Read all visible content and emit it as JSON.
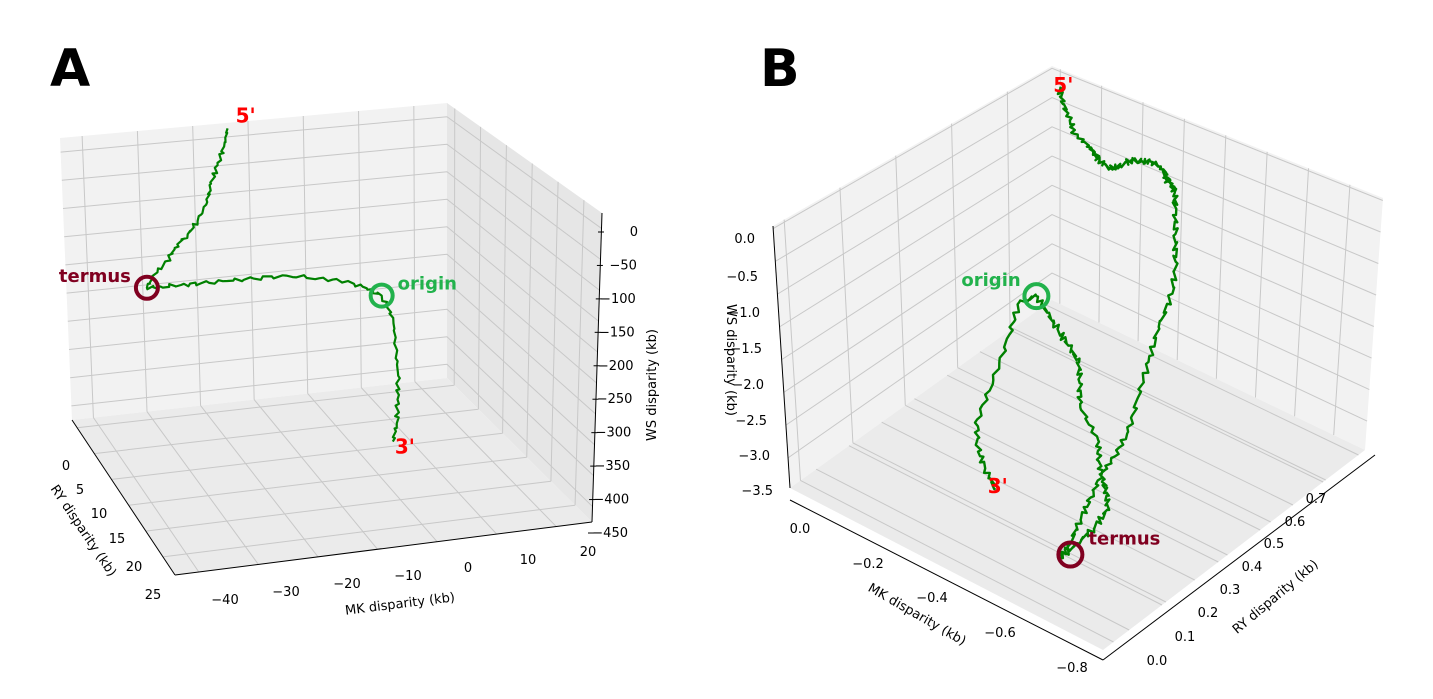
{
  "chart_data": [
    {
      "type": "line",
      "panel": "A",
      "series": [
        {
          "color": "#008000",
          "x": [
            -16.0,
            -17.5,
            -19.5,
            -21.5,
            -23.0,
            -25.5,
            -28.0,
            -31.0,
            -33.0,
            -36.0,
            -38.0,
            -36.0,
            -33.0,
            -30.0,
            -26.0,
            -22.0,
            -17.0,
            -12.0,
            -8.0,
            -5.0,
            -3.0,
            -2.0,
            -2.5,
            -3.0,
            -4.0,
            -5.0,
            -6.5
          ],
          "y": [
            0,
            1,
            2,
            3,
            4,
            5,
            6,
            7,
            8,
            9,
            10,
            10.5,
            11,
            11.5,
            12,
            12.5,
            13,
            13.5,
            14,
            14.5,
            15,
            16,
            17,
            18,
            19,
            20,
            21
          ],
          "z": [
            0,
            -20,
            -40,
            -60,
            -80,
            -100,
            -110,
            -120,
            -130,
            -140,
            -150,
            -145,
            -140,
            -135,
            -130,
            -125,
            -120,
            -125,
            -130,
            -140,
            -150,
            -180,
            -220,
            -260,
            -290,
            -320,
            -340
          ]
        }
      ],
      "annotations": [
        {
          "text": "5'",
          "color": "#ff0000",
          "at": [
            -16.0,
            0,
            0
          ]
        },
        {
          "text": "termus",
          "color": "#800020",
          "at": [
            -38.0,
            10,
            -150
          ]
        },
        {
          "text": "origin",
          "color": "#22b24c",
          "at": [
            -3.0,
            15,
            -150
          ]
        },
        {
          "text": "3'",
          "color": "#ff0000",
          "at": [
            -6.5,
            21,
            -340
          ]
        }
      ],
      "markers": [
        {
          "name": "termus",
          "color": "#800020",
          "at": [
            -38.0,
            10,
            -150
          ]
        },
        {
          "name": "origin",
          "color": "#22b24c",
          "at": [
            -3.0,
            15,
            -150
          ]
        }
      ],
      "xlabel": "MK disparity (kb)",
      "ylabel": "RY disparity (kb)",
      "zlabel": "WS disparity (kb)",
      "xticks": [
        "−40",
        "−30",
        "−20",
        "−10",
        "0",
        "10",
        "20"
      ],
      "yticks": [
        "0",
        "5",
        "10",
        "15",
        "20",
        "25"
      ],
      "zticks": [
        "0",
        "−50",
        "−100",
        "−150",
        "−200",
        "−250",
        "−300",
        "−350",
        "−400",
        "−450"
      ],
      "grid": true
    },
    {
      "type": "line",
      "panel": "B",
      "series": [
        {
          "color": "#008000",
          "x": [
            0.0,
            -0.03,
            -0.08,
            -0.12,
            -0.18,
            -0.22,
            -0.25,
            -0.3,
            -0.35,
            -0.4,
            -0.45,
            -0.5,
            -0.55,
            -0.6,
            -0.62,
            -0.65,
            -0.68,
            -0.7,
            -0.72,
            -0.74,
            -0.75,
            -0.73,
            -0.72,
            -0.71,
            -0.7,
            -0.69,
            -0.68,
            -0.67,
            -0.66,
            -0.65,
            -0.64,
            -0.65,
            -0.66,
            -0.64,
            -0.6,
            -0.55,
            -0.5,
            -0.45,
            -0.35,
            -0.3,
            -0.25,
            -0.2,
            -0.15,
            -0.1,
            -0.05,
            -0.02,
            -0.05,
            -0.1,
            -0.15,
            -0.2,
            -0.25,
            -0.3
          ],
          "y": [
            0.0,
            0.02,
            0.05,
            0.08,
            0.1,
            0.12,
            0.14,
            0.16,
            0.18,
            0.2,
            0.22,
            0.24,
            0.26,
            0.3,
            0.32,
            0.34,
            0.36,
            0.38,
            0.4,
            0.42,
            0.44,
            0.46,
            0.48,
            0.5,
            0.52,
            0.55,
            0.58,
            0.6,
            0.62,
            0.64,
            0.66,
            0.62,
            0.58,
            0.52,
            0.48,
            0.44,
            0.4,
            0.35,
            0.3,
            0.25,
            0.2,
            0.18,
            0.16,
            0.14,
            0.12,
            0.14,
            0.2,
            0.3,
            0.4,
            0.45,
            0.48,
            0.5
          ],
          "z": [
            0.0,
            -0.1,
            -0.1,
            -0.1,
            -0.05,
            0.0,
            0.05,
            0.15,
            0.4,
            0.7,
            0.9,
            1.1,
            1.2,
            1.3,
            1.5,
            1.55,
            1.6,
            1.5,
            1.2,
            0.9,
            0.5,
            0.0,
            -0.5,
            -1.0,
            -1.5,
            -1.8,
            -2.0,
            -2.3,
            -2.6,
            -2.9,
            -3.1,
            -3.0,
            -2.9,
            -2.9,
            -2.9,
            -3.0,
            -3.0,
            -3.0,
            -2.95,
            -2.9,
            -2.9,
            -2.85,
            -2.8,
            -2.75,
            -2.7,
            -2.8,
            -3.0,
            -3.2,
            -3.3,
            -3.4,
            -3.5,
            -3.6
          ]
        }
      ],
      "annotations": [
        {
          "text": "5'",
          "color": "#ff0000",
          "at": [
            0.0,
            0.0,
            0.0
          ]
        },
        {
          "text": "origin",
          "color": "#22b24c",
          "at": [
            -0.05,
            0.12,
            -2.7
          ]
        },
        {
          "text": "termus",
          "color": "#800020",
          "at": [
            -0.65,
            0.64,
            -3.1
          ]
        },
        {
          "text": "3'",
          "color": "#ff0000",
          "at": [
            -0.3,
            0.5,
            -3.6
          ]
        }
      ],
      "markers": [
        {
          "name": "origin",
          "color": "#22b24c",
          "at": [
            -0.05,
            0.12,
            -2.7
          ]
        },
        {
          "name": "termus",
          "color": "#800020",
          "at": [
            -0.65,
            0.64,
            -3.1
          ]
        }
      ],
      "xlabel": "MK disparity (kb)",
      "ylabel": "RY disparity (kb)",
      "zlabel": "WS disparity (kb)",
      "xticks": [
        "0.0",
        "−0.2",
        "−0.4",
        "−0.6",
        "−0.8"
      ],
      "yticks": [
        "0.0",
        "0.1",
        "0.2",
        "0.3",
        "0.4",
        "0.5",
        "0.6",
        "0.7"
      ],
      "zticks": [
        "0.0",
        "−0.5",
        "−1.0",
        "−1.5",
        "−2.0",
        "−2.5",
        "−3.0",
        "−3.5"
      ],
      "grid": true
    }
  ],
  "panels": [
    "A",
    "B"
  ]
}
